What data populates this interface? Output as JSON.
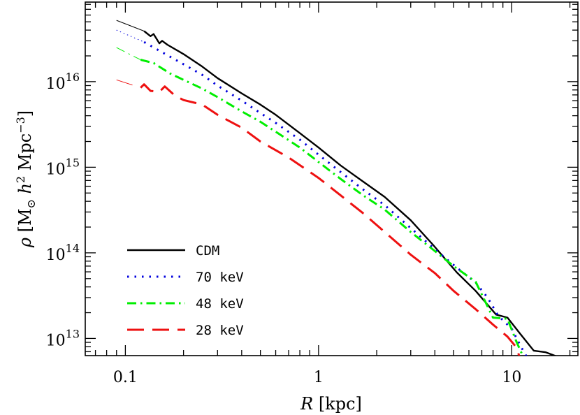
{
  "chart_data": {
    "type": "line",
    "title": "",
    "xlabel": "R",
    "xlabel_unit": "[kpc]",
    "ylabel": "ρ",
    "ylabel_unit_parts": [
      "[M",
      "⊙",
      " h",
      "2",
      " Mpc",
      "−3",
      "]"
    ],
    "x_scale": "log",
    "y_scale": "log",
    "xlim": [
      0.062,
      22
    ],
    "ylim": [
      6300000000000.0,
      8.5e+16
    ],
    "x_ticks": [
      {
        "value": 0.1,
        "label": "0.1"
      },
      {
        "value": 1,
        "label": "1"
      },
      {
        "value": 10,
        "label": "10"
      }
    ],
    "y_ticks": [
      {
        "value": 10000000000000.0,
        "base": "10",
        "exp": "13"
      },
      {
        "value": 100000000000000.0,
        "base": "10",
        "exp": "14"
      },
      {
        "value": 1000000000000000.0,
        "base": "10",
        "exp": "15"
      },
      {
        "value": 1e+16,
        "base": "10",
        "exp": "16"
      }
    ],
    "legend_position": "bottom-left",
    "series": [
      {
        "name": "CDM",
        "color": "#000000",
        "style": "solid",
        "extrapolation": {
          "x": [
            0.09,
            0.125
          ],
          "y": [
            5.2e+16,
            3.9e+16
          ]
        },
        "x": [
          0.125,
          0.135,
          0.14,
          0.15,
          0.155,
          0.165,
          0.2,
          0.25,
          0.3,
          0.4,
          0.5,
          0.6,
          0.8,
          1.0,
          1.3,
          1.7,
          2.2,
          3.0,
          3.9,
          5.2,
          6.5,
          8.3,
          9.5,
          11,
          13,
          15,
          17
        ],
        "y": [
          3.9e+16,
          3.4e+16,
          3.6e+16,
          2.8e+16,
          3e+16,
          2.7e+16,
          2.1e+16,
          1.5e+16,
          1.1e+16,
          7300000000000000.0,
          5400000000000000.0,
          4100000000000000.0,
          2500000000000000.0,
          1700000000000000.0,
          1050000000000000.0,
          680000000000000.0,
          450000000000000.0,
          240000000000000.0,
          125000000000000.0,
          59000000000000.0,
          36000000000000.0,
          19000000000000.0,
          17500000000000.0,
          11500000000000.0,
          7200000000000.0,
          6900000000000.0,
          6200000000000.0
        ]
      },
      {
        "name": "70 keV",
        "color": "#0000dd",
        "style": "dotted",
        "extrapolation": {
          "x": [
            0.09,
            0.125
          ],
          "y": [
            4e+16,
            2.9e+16
          ]
        },
        "x": [
          0.125,
          0.15,
          0.2,
          0.25,
          0.3,
          0.4,
          0.5,
          0.6,
          0.8,
          1.0,
          1.3,
          1.7,
          2.2,
          3.0,
          4.0,
          5.2,
          6.5,
          7.5,
          8.5,
          10,
          11,
          12
        ],
        "y": [
          2.9e+16,
          2.3e+16,
          1.6e+16,
          1.2e+16,
          9000000000000000.0,
          6000000000000000.0,
          4300000000000000.0,
          3300000000000000.0,
          2100000000000000.0,
          1400000000000000.0,
          880000000000000.0,
          550000000000000.0,
          360000000000000.0,
          195000000000000.0,
          110000000000000.0,
          67000000000000.0,
          45000000000000.0,
          30000000000000.0,
          18500000000000.0,
          13000000000000.0,
          8500000000000.0,
          6000000000000.0
        ]
      },
      {
        "name": "48 keV",
        "color": "#00ee00",
        "style": "dash-dot",
        "extrapolation": {
          "x": [
            0.09,
            0.12
          ],
          "y": [
            2.5e+16,
            1.8e+16
          ]
        },
        "x": [
          0.12,
          0.14,
          0.17,
          0.2,
          0.25,
          0.3,
          0.4,
          0.5,
          0.6,
          0.8,
          1.0,
          1.3,
          1.7,
          2.2,
          3.0,
          4.0,
          5.0,
          6.5,
          8.0,
          9.5,
          10.5,
          11.5
        ],
        "y": [
          1.8e+16,
          1.65e+16,
          1.25e+16,
          1.05e+16,
          8300000000000000.0,
          6600000000000000.0,
          4500000000000000.0,
          3400000000000000.0,
          2600000000000000.0,
          1700000000000000.0,
          1150000000000000.0,
          730000000000000.0,
          470000000000000.0,
          320000000000000.0,
          175000000000000.0,
          105000000000000.0,
          70000000000000.0,
          46000000000000.0,
          17500000000000.0,
          17000000000000.0,
          9500000000000.0,
          6000000000000.0
        ]
      },
      {
        "name": "28 keV",
        "color": "#ee1111",
        "style": "dashed",
        "extrapolation": {
          "x": [
            0.09,
            0.12
          ],
          "y": [
            1.05e+16,
            8500000000000000.0
          ]
        },
        "x": [
          0.12,
          0.125,
          0.135,
          0.15,
          0.16,
          0.18,
          0.2,
          0.25,
          0.3,
          0.4,
          0.5,
          0.7,
          1.0,
          1.3,
          1.7,
          2.2,
          3.0,
          4.0,
          5.0,
          6.5,
          8.0,
          9.5,
          10.5,
          11
        ],
        "y": [
          8500000000000000.0,
          9300000000000000.0,
          7800000000000000.0,
          7600000000000000.0,
          8800000000000000.0,
          6900000000000000.0,
          6100000000000000.0,
          5400000000000000.0,
          4100000000000000.0,
          2900000000000000.0,
          2000000000000000.0,
          1300000000000000.0,
          750000000000000.0,
          470000000000000.0,
          290000000000000.0,
          175000000000000.0,
          95000000000000.0,
          58000000000000.0,
          36000000000000.0,
          22000000000000.0,
          14500000000000.0,
          10500000000000.0,
          8000000000000.0,
          6000000000000.0
        ]
      }
    ]
  }
}
